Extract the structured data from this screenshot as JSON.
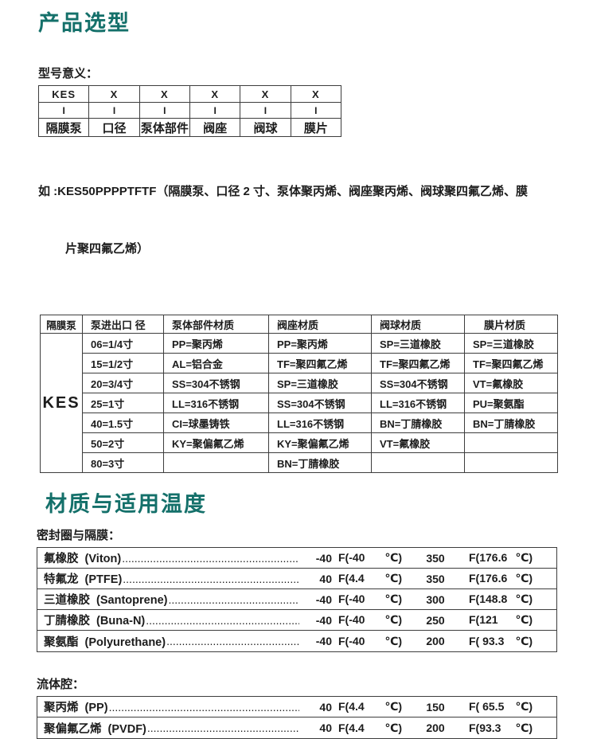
{
  "colors": {
    "accent": "#14706a",
    "border": "#3d3d3d",
    "text": "#1c1c1c"
  },
  "titles": {
    "section1": "产品选型",
    "section2": "材质与适用温度"
  },
  "labels": {
    "model_meaning": "型号意义：",
    "seal": "密封圈与隔膜：",
    "fluid": "流体腔："
  },
  "example": {
    "line1": "如 :KES50PPPPTFTF（隔膜泵、口径 2 寸、泵体聚丙烯、阀座聚丙烯、阀球聚四氟乙烯、膜",
    "line2": "片聚四氟乙烯）"
  },
  "model_table": {
    "rows": [
      [
        "KES",
        "X",
        "X",
        "X",
        "X",
        "X"
      ],
      [
        "I",
        "I",
        "I",
        "I",
        "I",
        "I"
      ],
      [
        "隔膜泵",
        "口径",
        "泵体部件",
        "阀座",
        "阀球",
        "膜片"
      ]
    ]
  },
  "selection_table": {
    "headers": [
      "隔膜泵",
      "泵进出口 径",
      "泵体部件材质",
      "阀座材质",
      "阀球材质",
      "膜片材质"
    ],
    "pump_model": "KES",
    "rows": [
      [
        "06=1/4寸",
        "PP=聚丙烯",
        "PP=聚丙烯",
        "SP=三道橡胶",
        "SP=三道橡胶"
      ],
      [
        "15=1/2寸",
        "AL=铝合金",
        "TF=聚四氟乙烯",
        "TF=聚四氟乙烯",
        "TF=聚四氟乙烯"
      ],
      [
        "20=3/4寸",
        "SS=304不锈钢",
        "SP=三道橡胶",
        "SS=304不锈钢",
        "VT=氟橡胶"
      ],
      [
        "25=1寸",
        "LL=316不锈钢",
        "SS=304不锈钢",
        "LL=316不锈钢",
        "PU=聚氨酯"
      ],
      [
        "40=1.5寸",
        "CI=球墨铸铁",
        "LL=316不锈钢",
        "BN=丁腈橡胶",
        "BN=丁腈橡胶"
      ],
      [
        "50=2寸",
        "KY=聚偏氟乙烯",
        "KY=聚偏氟乙烯",
        "VT=氟橡胶",
        ""
      ],
      [
        "80=3寸",
        "",
        "BN=丁腈橡胶",
        "",
        ""
      ]
    ]
  },
  "seal_table": {
    "rows": [
      {
        "name": "氟橡胶  (Viton)",
        "min": "-40",
        "min_f": "F(-40",
        "min_u": "℃)",
        "max": "350",
        "max_f": "F(176.6",
        "max_u": "℃)"
      },
      {
        "name": "特氟龙  (PTFE)",
        "min": "40",
        "min_f": "F(4.4",
        "min_u": "℃)",
        "max": "350",
        "max_f": "F(176.6",
        "max_u": "℃)"
      },
      {
        "name": "三道橡胶  (Santoprene)",
        "min": "-40",
        "min_f": "F(-40",
        "min_u": "℃)",
        "max": "300",
        "max_f": "F(148.8",
        "max_u": "℃)"
      },
      {
        "name": "丁腈橡胶  (Buna-N)",
        "min": "-40",
        "min_f": "F(-40",
        "min_u": "℃)",
        "max": "250",
        "max_f": "F(121",
        "max_u": "℃)"
      },
      {
        "name": "聚氨酯  (Polyurethane)",
        "min": "-40",
        "min_f": "F(-40",
        "min_u": "℃)",
        "max": "200",
        "max_f": "F( 93.3",
        "max_u": "℃)"
      }
    ]
  },
  "fluid_table": {
    "rows": [
      {
        "name": "聚丙烯  (PP)",
        "min": "40",
        "min_f": "F(4.4",
        "min_u": "℃)",
        "max": "150",
        "max_f": "F( 65.5",
        "max_u": "℃)"
      },
      {
        "name": "聚偏氟乙烯  (PVDF)",
        "min": "40",
        "min_f": "F(4.4",
        "min_u": "℃)",
        "max": "200",
        "max_f": "F(93.3",
        "max_u": "℃)"
      }
    ]
  }
}
